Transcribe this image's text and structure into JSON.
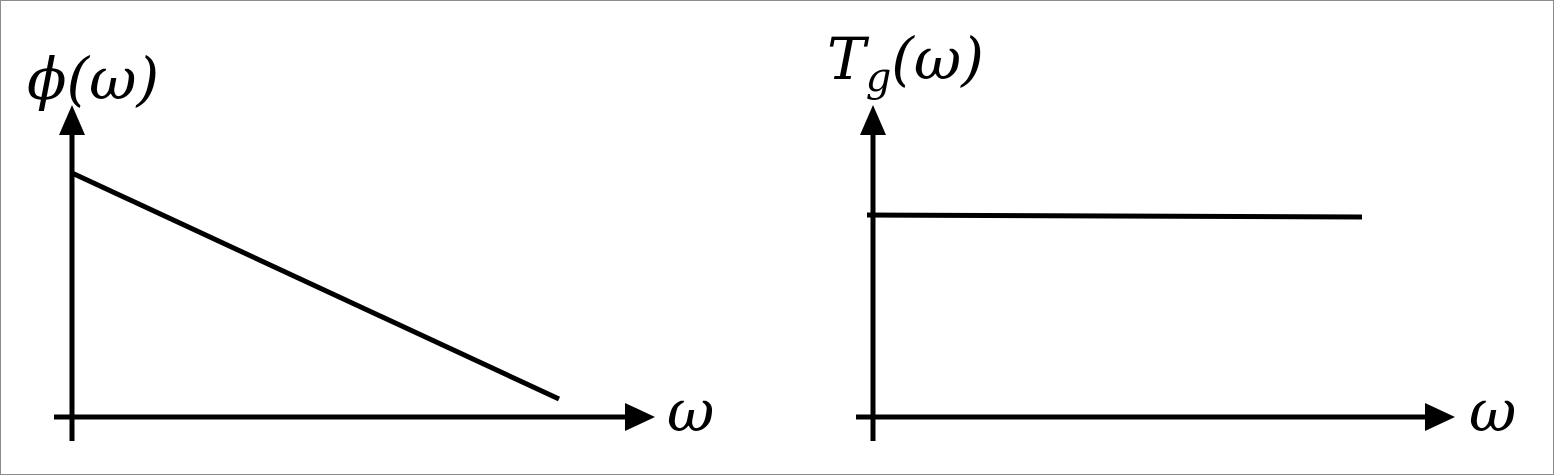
{
  "diagrams": [
    {
      "y_label": "ϕ(ω)",
      "x_label": "ω",
      "curve_shape": "decreasing straight line from the vertical axis toward the horizontal axis"
    },
    {
      "y_label_main": "T",
      "y_label_sub": "g",
      "y_label_arg": "(ω)",
      "x_label": "ω",
      "curve_shape": "constant horizontal line"
    }
  ],
  "colors": {
    "ink": "#000000",
    "background": "#ffffff",
    "frame": "#8c8c8c"
  }
}
